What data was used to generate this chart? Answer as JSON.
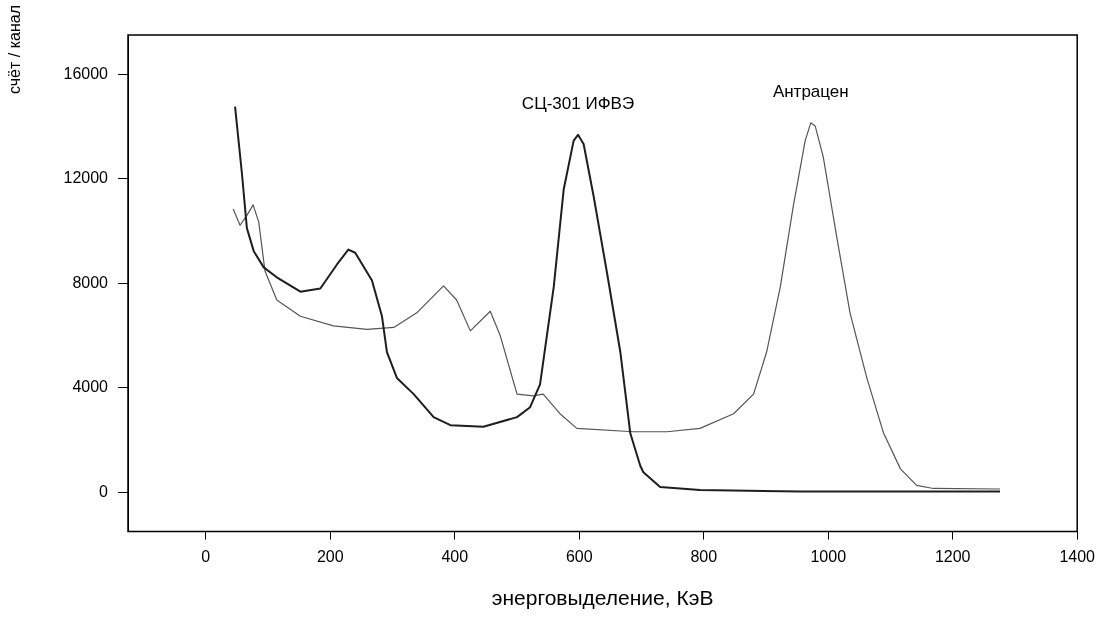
{
  "chart_data": {
    "type": "line",
    "xlabel": "энерговыделение, КэВ",
    "ylabel": "счёт / канал",
    "series": [
      {
        "name": "СЦ-301 ИФВЭ",
        "color": "#1e1e1e",
        "x": [
          47,
          58,
          66,
          77,
          93,
          114,
          152,
          184,
          211,
          229,
          240,
          267,
          283,
          291,
          307,
          334,
          366,
          393,
          446,
          500,
          521,
          537,
          559,
          575,
          591,
          598,
          607,
          623,
          644,
          666,
          682,
          698,
          703,
          730,
          794,
          955,
          1276
        ],
        "values": [
          14760,
          12210,
          10110,
          9230,
          8610,
          8230,
          7680,
          7800,
          8730,
          9290,
          9170,
          8110,
          6740,
          5370,
          4380,
          3760,
          2880,
          2570,
          2510,
          2880,
          3260,
          4130,
          7860,
          11590,
          13460,
          13680,
          13330,
          11340,
          8480,
          5370,
          2260,
          1020,
          770,
          210,
          90,
          30,
          30
        ]
      },
      {
        "name": "Антрацен",
        "color": "#555555",
        "x": [
          44,
          55,
          66,
          76,
          85,
          95,
          114,
          152,
          205,
          259,
          302,
          339,
          382,
          403,
          425,
          457,
          473,
          500,
          526,
          542,
          569,
          596,
          687,
          741,
          794,
          848,
          880,
          901,
          923,
          944,
          963,
          972,
          979,
          992,
          1014,
          1035,
          1062,
          1089,
          1116,
          1142,
          1169,
          1276
        ],
        "values": [
          10840,
          10220,
          10600,
          11000,
          10350,
          8480,
          7360,
          6740,
          6370,
          6240,
          6310,
          6870,
          7900,
          7360,
          6180,
          6930,
          6000,
          3760,
          3690,
          3760,
          3010,
          2450,
          2320,
          2320,
          2450,
          3010,
          3760,
          5370,
          7860,
          10970,
          13460,
          14140,
          14020,
          12840,
          9730,
          6870,
          4380,
          2260,
          900,
          270,
          150,
          130
        ]
      }
    ],
    "xlim": [
      -125,
      1400
    ],
    "xticks": [
      0,
      200,
      400,
      600,
      800,
      1000,
      1200,
      1400
    ],
    "ylim": [
      -1500,
      17500
    ],
    "yticks": [
      0,
      4000,
      8000,
      12000,
      16000
    ],
    "grid": false,
    "legend": false,
    "marker": "none",
    "line_style": "solid"
  }
}
